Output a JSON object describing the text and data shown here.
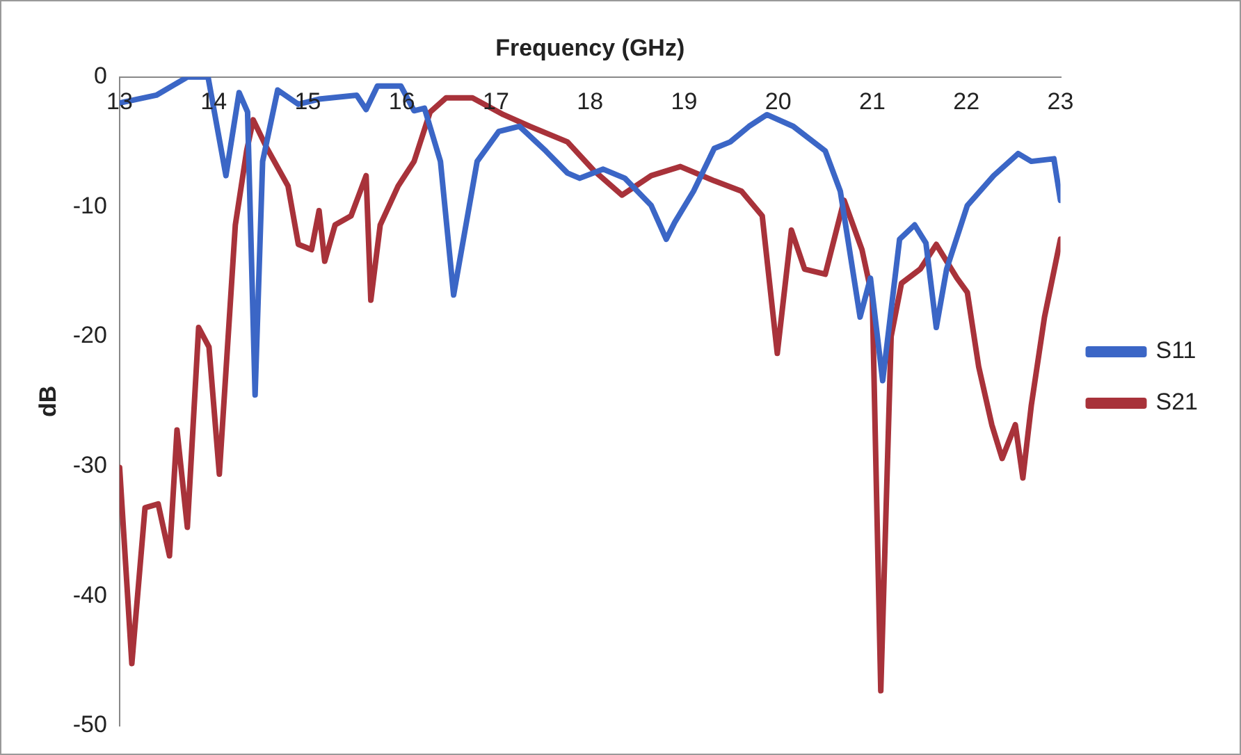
{
  "chart_data": {
    "type": "line",
    "xlabel": "Frequency (GHz)",
    "ylabel": "dB",
    "xlim": [
      13,
      23
    ],
    "xticks": [
      13,
      14,
      15,
      16,
      17,
      18,
      19,
      20,
      21,
      22,
      23
    ],
    "ylim": [
      -50,
      0
    ],
    "yticks": [
      -50,
      -40,
      -30,
      -20,
      -10,
      0
    ],
    "grid": false,
    "legend": "right",
    "marker": "none",
    "line_style": "solid",
    "series": [
      {
        "name": "S11",
        "color": "#3b66c6",
        "x": [
          13.0,
          13.39,
          13.72,
          13.94,
          14.13,
          14.27,
          14.36,
          14.44,
          14.52,
          14.68,
          14.9,
          15.12,
          15.52,
          15.62,
          15.74,
          15.99,
          16.13,
          16.24,
          16.41,
          16.55,
          16.8,
          17.03,
          17.25,
          17.53,
          17.76,
          17.89,
          18.14,
          18.37,
          18.65,
          18.81,
          18.9,
          19.1,
          19.32,
          19.49,
          19.69,
          19.88,
          20.16,
          20.5,
          20.66,
          20.87,
          20.98,
          21.11,
          21.29,
          21.45,
          21.57,
          21.68,
          21.79,
          22.01,
          22.29,
          22.55,
          22.69,
          22.93,
          23.0
        ],
        "values": [
          -2.0,
          -1.4,
          0,
          0,
          -7.6,
          -1.2,
          -2.7,
          -24.5,
          -6.5,
          -1.0,
          -2.1,
          -1.7,
          -1.4,
          -2.5,
          -0.7,
          -0.7,
          -2.6,
          -2.4,
          -6.5,
          -16.8,
          -6.5,
          -4.2,
          -3.8,
          -5.7,
          -7.4,
          -7.8,
          -7.1,
          -7.8,
          -9.9,
          -12.5,
          -11.2,
          -8.8,
          -5.5,
          -5.0,
          -3.8,
          -2.9,
          -3.8,
          -5.7,
          -8.8,
          -18.5,
          -15.5,
          -23.4,
          -12.5,
          -11.4,
          -12.8,
          -19.3,
          -14.8,
          -9.9,
          -7.6,
          -5.9,
          -6.5,
          -6.3,
          -9.5
        ]
      },
      {
        "name": "S21",
        "color": "#a8323a",
        "x": [
          13.0,
          13.13,
          13.27,
          13.41,
          13.53,
          13.61,
          13.72,
          13.84,
          13.95,
          14.06,
          14.23,
          14.35,
          14.42,
          14.56,
          14.79,
          14.9,
          15.04,
          15.12,
          15.18,
          15.29,
          15.46,
          15.62,
          15.67,
          15.77,
          15.96,
          16.13,
          16.3,
          16.47,
          16.75,
          17.08,
          17.36,
          17.76,
          18.04,
          18.34,
          18.65,
          18.96,
          19.32,
          19.61,
          19.83,
          19.99,
          20.14,
          20.28,
          20.5,
          20.7,
          20.89,
          21.0,
          21.09,
          21.2,
          21.31,
          21.51,
          21.68,
          21.9,
          22.01,
          22.13,
          22.27,
          22.38,
          22.52,
          22.6,
          22.69,
          22.83,
          23.0
        ],
        "values": [
          -30.1,
          -45.2,
          -33.2,
          -32.9,
          -36.9,
          -27.2,
          -34.7,
          -19.3,
          -20.8,
          -30.6,
          -11.4,
          -5.7,
          -3.3,
          -5.4,
          -8.4,
          -12.9,
          -13.3,
          -10.3,
          -14.2,
          -11.4,
          -10.7,
          -7.6,
          -17.2,
          -11.4,
          -8.4,
          -6.5,
          -2.7,
          -1.6,
          -1.6,
          -2.9,
          -3.8,
          -5.0,
          -7.2,
          -9.1,
          -7.6,
          -6.9,
          -8.0,
          -8.8,
          -10.7,
          -21.3,
          -11.8,
          -14.8,
          -15.2,
          -9.5,
          -13.3,
          -17.0,
          -47.3,
          -20.0,
          -15.9,
          -14.8,
          -12.9,
          -15.5,
          -16.6,
          -22.3,
          -26.8,
          -29.4,
          -26.8,
          -30.9,
          -25.3,
          -18.5,
          -12.5
        ]
      }
    ]
  }
}
